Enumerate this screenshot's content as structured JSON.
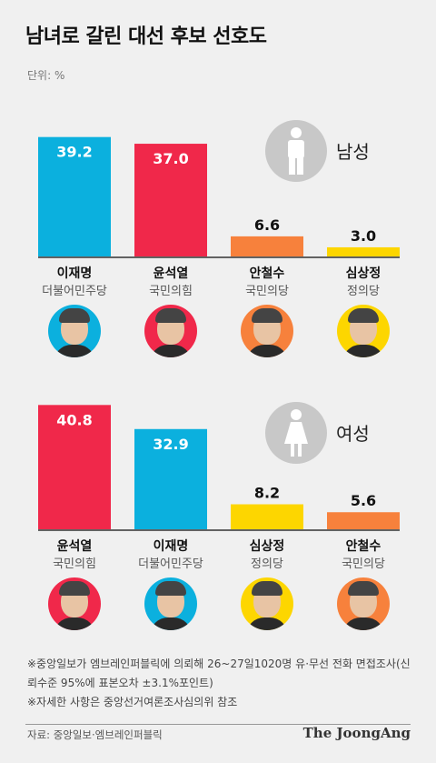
{
  "title": "남녀로 갈린 대선 후보 선호도",
  "unit": "단위: %",
  "colors": {
    "이재명": "#0bb0de",
    "윤석열": "#f0284a",
    "안철수": "#f7813c",
    "심상정": "#fdd600"
  },
  "chart_data": [
    {
      "type": "bar",
      "gender_label": "남성",
      "categories": [
        "이재명",
        "윤석열",
        "안철수",
        "심상정"
      ],
      "parties": [
        "더불어민주당",
        "국민의힘",
        "국민의당",
        "정의당"
      ],
      "values": [
        39.2,
        37.0,
        6.6,
        3.0
      ],
      "value_labels": [
        "39.2",
        "37.0",
        "6.6",
        "3.0"
      ]
    },
    {
      "type": "bar",
      "gender_label": "여성",
      "categories": [
        "윤석열",
        "이재명",
        "심상정",
        "안철수"
      ],
      "parties": [
        "국민의힘",
        "더불어민주당",
        "정의당",
        "국민의당"
      ],
      "values": [
        40.8,
        32.9,
        8.2,
        5.6
      ],
      "value_labels": [
        "40.8",
        "32.9",
        "8.2",
        "5.6"
      ]
    }
  ],
  "notes": [
    "※중앙일보가 엠브레인퍼블릭에 의뢰해 26~27일1020명 유·무선 전화 면접조사(신뢰수준 95%에 표본오차 ±3.1%포인트)",
    "※자세한 사항은 중앙선거여론조사심의위 참조"
  ],
  "source": "자료: 중앙일보·엠브레인퍼블릭",
  "brand": "The JoongAng"
}
